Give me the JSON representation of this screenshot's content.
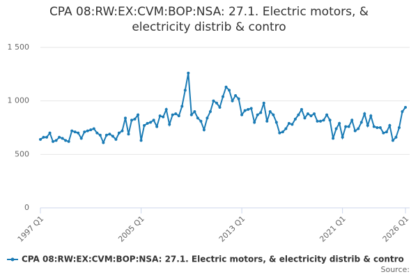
{
  "chart_data": {
    "type": "line",
    "title": "CPA 08:RW:EX:CVM:BOP:NSA: 27.1. Electric motors, & electricity distrib & contro",
    "source": "Source:",
    "categories": [
      "1997 Q1",
      null,
      null,
      null,
      null,
      null,
      null,
      null,
      null,
      null,
      null,
      null,
      null,
      null,
      null,
      null,
      null,
      null,
      null,
      null,
      null,
      null,
      null,
      null,
      null,
      null,
      null,
      null,
      null,
      null,
      null,
      null,
      "2005 Q1",
      null,
      null,
      null,
      null,
      null,
      null,
      null,
      null,
      null,
      null,
      null,
      null,
      null,
      null,
      null,
      null,
      null,
      null,
      null,
      null,
      null,
      null,
      null,
      null,
      null,
      null,
      null,
      null,
      null,
      null,
      null,
      "2013 Q1",
      null,
      null,
      null,
      null,
      null,
      null,
      null,
      null,
      null,
      null,
      null,
      null,
      null,
      null,
      null,
      null,
      null,
      null,
      null,
      null,
      null,
      null,
      null,
      null,
      null,
      null,
      null,
      null,
      null,
      null,
      null,
      "2021 Q1",
      null,
      null,
      null,
      null,
      null,
      null,
      null,
      null,
      null,
      null,
      null,
      null,
      null,
      null,
      null,
      null,
      null,
      null,
      null,
      "2026 Q1"
    ],
    "series": [
      {
        "name": "CPA 08:RW:EX:CVM:BOP:NSA: 27.1. Electric motors, & electricity distrib & contro",
        "color": "#1a7bb5",
        "values": [
          640,
          660,
          660,
          700,
          620,
          630,
          660,
          650,
          630,
          620,
          720,
          710,
          700,
          650,
          710,
          720,
          730,
          740,
          700,
          680,
          610,
          680,
          690,
          670,
          640,
          700,
          720,
          840,
          690,
          820,
          830,
          870,
          630,
          770,
          790,
          800,
          820,
          760,
          860,
          850,
          920,
          780,
          870,
          880,
          860,
          950,
          1100,
          1260,
          870,
          900,
          840,
          810,
          730,
          840,
          900,
          1000,
          980,
          940,
          1040,
          1130,
          1100,
          1000,
          1050,
          1020,
          870,
          910,
          920,
          930,
          800,
          870,
          890,
          980,
          810,
          900,
          870,
          800,
          700,
          710,
          740,
          790,
          780,
          830,
          870,
          920,
          840,
          880,
          860,
          880,
          810,
          810,
          820,
          870,
          820,
          650,
          740,
          790,
          660,
          760,
          760,
          820,
          720,
          740,
          800,
          880,
          770,
          860,
          760,
          750,
          750,
          700,
          710,
          770,
          630,
          660,
          750,
          900,
          940
        ]
      }
    ],
    "ylim": [
      0,
      1500
    ],
    "yticks": [
      0,
      500,
      {
        "value": 1000,
        "label": "1 000"
      },
      {
        "value": 1500,
        "label": "1 500"
      }
    ],
    "grid": true
  }
}
